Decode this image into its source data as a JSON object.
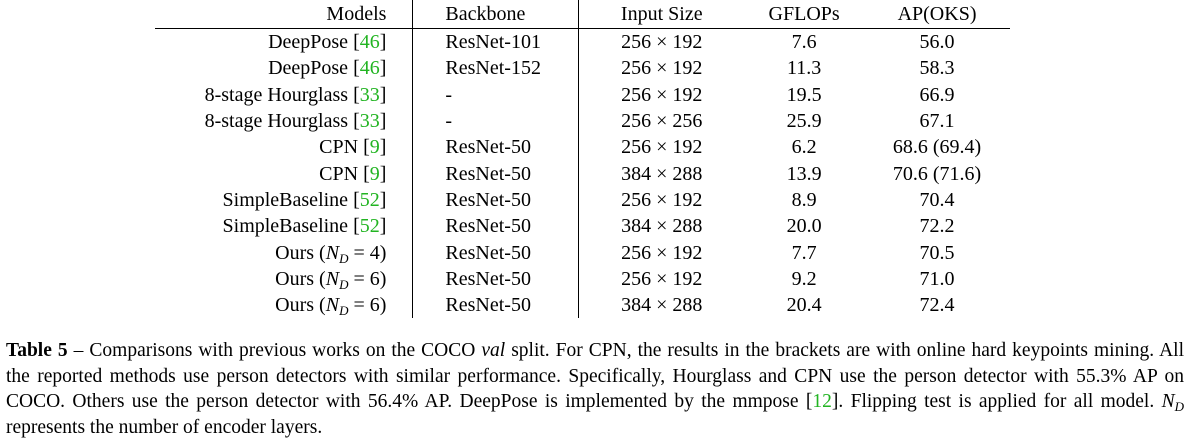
{
  "table": {
    "headers": {
      "model": "Models",
      "backbone": "Backbone",
      "input_size": "Input Size",
      "gflops": "GFLOPs",
      "ap": "AP(OKS)"
    },
    "rows": [
      {
        "model": "DeepPose",
        "ref": "46",
        "nd": "",
        "backbone": "ResNet-101",
        "input_size": "256 × 192",
        "gflops": "7.6",
        "ap": "56.0"
      },
      {
        "model": "DeepPose",
        "ref": "46",
        "nd": "",
        "backbone": "ResNet-152",
        "input_size": "256 × 192",
        "gflops": "11.3",
        "ap": "58.3"
      },
      {
        "model": "8-stage Hourglass",
        "ref": "33",
        "nd": "",
        "backbone": "-",
        "input_size": "256 × 192",
        "gflops": "19.5",
        "ap": "66.9"
      },
      {
        "model": "8-stage Hourglass",
        "ref": "33",
        "nd": "",
        "backbone": "-",
        "input_size": "256 × 256",
        "gflops": "25.9",
        "ap": "67.1"
      },
      {
        "model": "CPN",
        "ref": "9",
        "nd": "",
        "backbone": "ResNet-50",
        "input_size": "256 × 192",
        "gflops": "6.2",
        "ap": "68.6 (69.4)"
      },
      {
        "model": "CPN",
        "ref": "9",
        "nd": "",
        "backbone": "ResNet-50",
        "input_size": "384 × 288",
        "gflops": "13.9",
        "ap": "70.6 (71.6)"
      },
      {
        "model": "SimpleBaseline",
        "ref": "52",
        "nd": "",
        "backbone": "ResNet-50",
        "input_size": "256 × 192",
        "gflops": "8.9",
        "ap": "70.4"
      },
      {
        "model": "SimpleBaseline",
        "ref": "52",
        "nd": "",
        "backbone": "ResNet-50",
        "input_size": "384 × 288",
        "gflops": "20.0",
        "ap": "72.2"
      },
      {
        "model": "Ours",
        "ref": "",
        "nd": "4",
        "backbone": "ResNet-50",
        "input_size": "256 × 192",
        "gflops": "7.7",
        "ap": "70.5"
      },
      {
        "model": "Ours",
        "ref": "",
        "nd": "6",
        "backbone": "ResNet-50",
        "input_size": "256 × 192",
        "gflops": "9.2",
        "ap": "71.0"
      },
      {
        "model": "Ours",
        "ref": "",
        "nd": "6",
        "backbone": "ResNet-50",
        "input_size": "384 × 288",
        "gflops": "20.4",
        "ap": "72.4"
      }
    ]
  },
  "caption": {
    "label": "Table 5",
    "dash": " – ",
    "part1": "Comparisons with previous works on the COCO ",
    "val": "val",
    "part2": " split. For CPN, the results in the brackets are with online hard keypoints mining. All the reported methods use person detectors with similar performance. Specifically, Hourglass and CPN use the person detector with 55.3% AP on COCO. Others use the person detector with 56.4% AP. DeepPose is implemented by the mmpose [",
    "ref12": "12",
    "part3": "]. Flipping test is applied for all model. ",
    "nd_symbol": "N",
    "nd_sub": "D",
    "part4": " represents the number of encoder layers."
  }
}
